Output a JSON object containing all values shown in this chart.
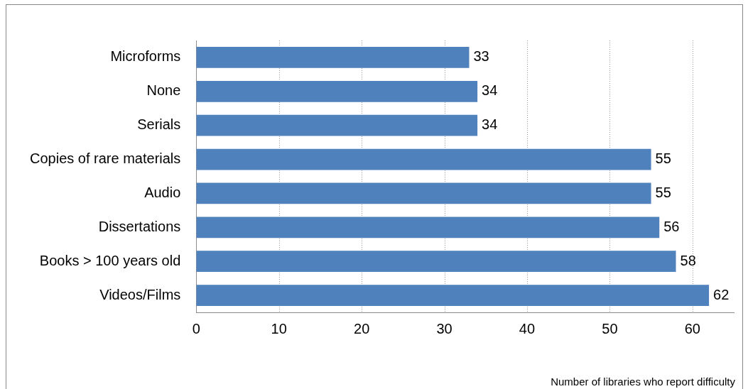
{
  "chart_data": {
    "type": "bar",
    "orientation": "horizontal",
    "xlabel": "Number of libraries who report difficulty",
    "categories": [
      "Microforms",
      "None",
      "Serials",
      "Copies of rare materials",
      "Audio",
      "Dissertations",
      "Books > 100 years old",
      "Videos/Films"
    ],
    "values": [
      33,
      34,
      34,
      55,
      55,
      56,
      58,
      62
    ],
    "color": "#4f81bd",
    "xlim": [
      0,
      65
    ],
    "xticks": [
      0,
      10,
      20,
      30,
      40,
      50,
      60
    ],
    "grid": "x",
    "legend": false,
    "data_labels": true
  }
}
